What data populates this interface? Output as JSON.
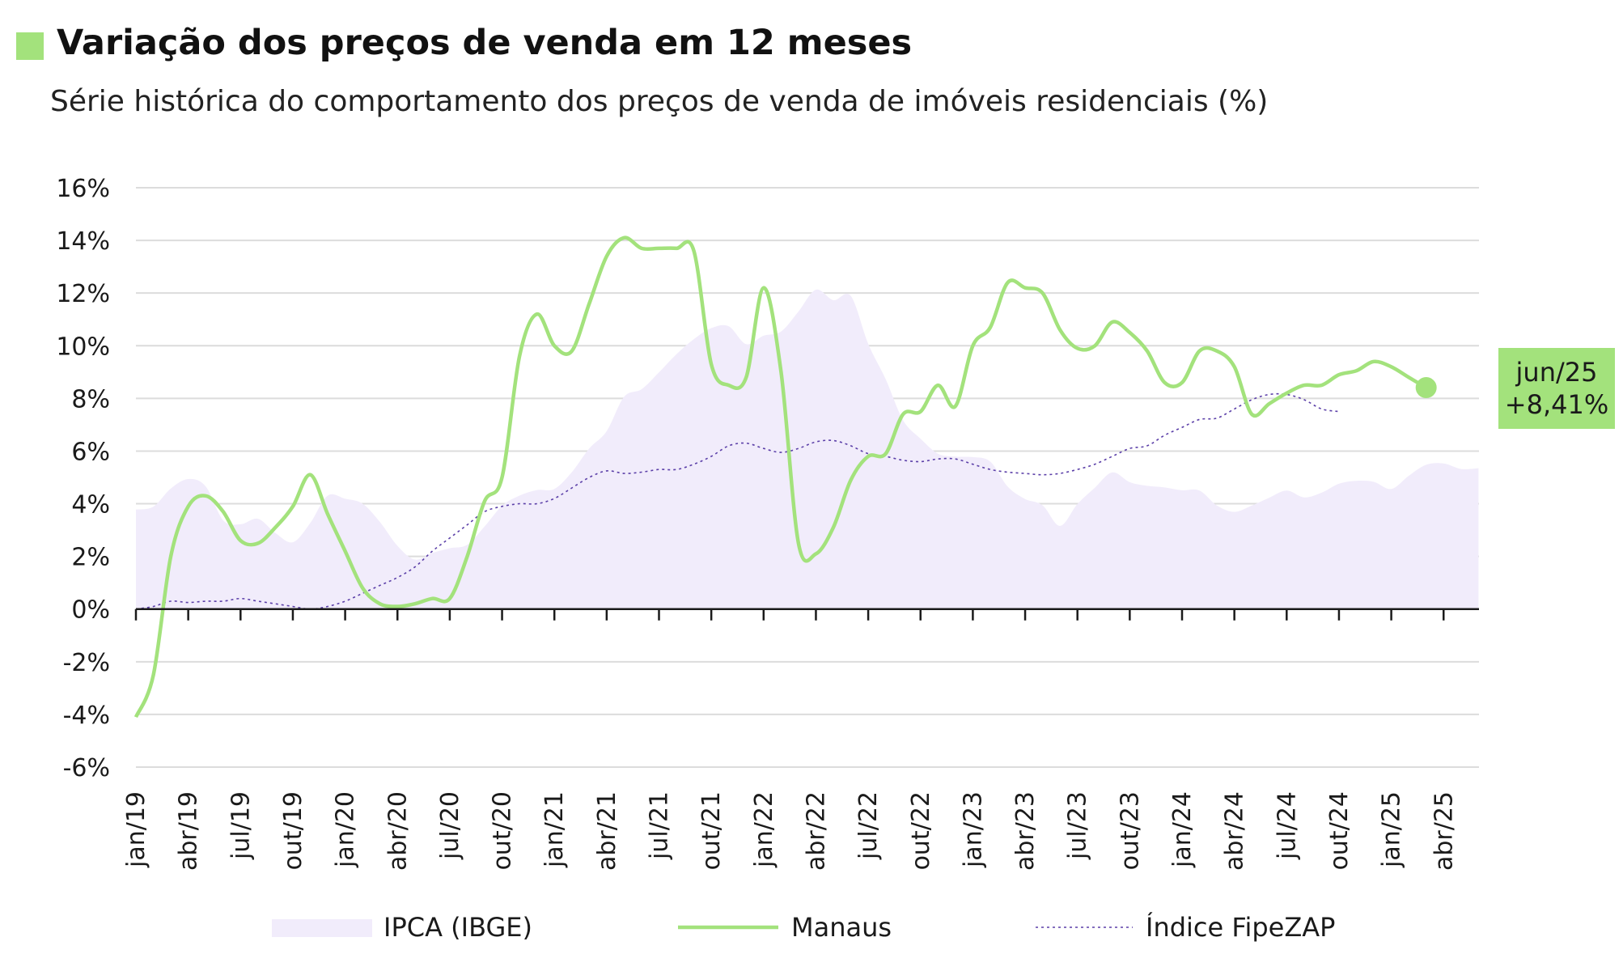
{
  "header": {
    "title": "Variação dos preços de venda em 12 meses",
    "subtitle": "Série histórica do comportamento dos preços de venda de imóveis residenciais (%)",
    "accent_color": "#a3e27c"
  },
  "chart_data": {
    "type": "line",
    "x_tick_labels": [
      "jan/19",
      "abr/19",
      "jul/19",
      "out/19",
      "jan/20",
      "abr/20",
      "jul/20",
      "out/20",
      "jan/21",
      "abr/21",
      "jul/21",
      "out/21",
      "jan/22",
      "abr/22",
      "jul/22",
      "out/22",
      "jan/23",
      "abr/23",
      "jul/23",
      "out/23",
      "jan/24",
      "abr/24",
      "jul/24",
      "out/24",
      "jan/25",
      "abr/25"
    ],
    "y_tick_labels": [
      "16%",
      "14%",
      "12%",
      "10%",
      "8%",
      "6%",
      "4%",
      "2%",
      "0%",
      "-2%",
      "-4%",
      "-6%"
    ],
    "ylim": [
      -6,
      16
    ],
    "y_step": 2,
    "grid": true,
    "legend_position": "bottom",
    "x_start": "jan/19",
    "x_end": "jun/25",
    "series": [
      {
        "name": "IPCA (IBGE)",
        "style": "area",
        "color": "#f1ecfb",
        "values": [
          3.78,
          3.89,
          4.58,
          4.94,
          4.66,
          3.37,
          3.22,
          3.43,
          2.89,
          2.54,
          3.27,
          4.31,
          4.19,
          4.0,
          3.3,
          2.4,
          1.88,
          2.13,
          2.31,
          2.44,
          3.14,
          3.92,
          4.31,
          4.52,
          4.56,
          5.2,
          6.1,
          6.76,
          8.06,
          8.35,
          8.99,
          9.68,
          10.25,
          10.67,
          10.74,
          10.06,
          10.38,
          10.54,
          11.3,
          12.13,
          11.73,
          11.89,
          10.07,
          8.73,
          7.17,
          6.47,
          5.9,
          5.79,
          5.77,
          5.6,
          4.65,
          4.18,
          3.94,
          3.16,
          3.99,
          4.61,
          5.19,
          4.82,
          4.68,
          4.62,
          4.51,
          4.5,
          3.93,
          3.69,
          3.93,
          4.23,
          4.5,
          4.24,
          4.42,
          4.76,
          4.87,
          4.83,
          4.56,
          5.06,
          5.48,
          5.53,
          5.32,
          5.35
        ]
      },
      {
        "name": "Manaus",
        "style": "line",
        "color": "#a3e27c",
        "values": [
          -4.1,
          -2.5,
          2.0,
          3.9,
          4.3,
          3.7,
          2.6,
          2.5,
          3.1,
          3.9,
          5.1,
          3.6,
          2.2,
          0.8,
          0.2,
          0.1,
          0.2,
          0.4,
          0.4,
          2.0,
          4.1,
          5.0,
          9.6,
          11.2,
          10.0,
          9.8,
          11.6,
          13.4,
          14.1,
          13.7,
          13.7,
          13.7,
          13.6,
          9.3,
          8.5,
          8.8,
          12.2,
          9.0,
          2.5,
          2.1,
          3.1,
          4.9,
          5.8,
          5.9,
          7.4,
          7.5,
          8.5,
          7.7,
          10.0,
          10.7,
          12.4,
          12.2,
          12.0,
          10.6,
          9.9,
          10.0,
          10.9,
          10.5,
          9.8,
          8.6,
          8.6,
          9.8,
          9.8,
          9.2,
          7.4,
          7.8,
          8.2,
          8.5,
          8.5,
          8.9,
          9.05,
          9.4,
          9.2,
          8.8,
          8.41
        ]
      },
      {
        "name": "Índice FipeZAP",
        "style": "dotted",
        "color": "#5b3fa8",
        "values": [
          0.0,
          0.1,
          0.3,
          0.25,
          0.3,
          0.3,
          0.4,
          0.3,
          0.2,
          0.1,
          0.0,
          0.1,
          0.3,
          0.6,
          0.9,
          1.2,
          1.6,
          2.2,
          2.7,
          3.2,
          3.7,
          3.9,
          4.0,
          4.0,
          4.2,
          4.6,
          5.0,
          5.25,
          5.15,
          5.2,
          5.3,
          5.3,
          5.5,
          5.8,
          6.2,
          6.3,
          6.1,
          5.95,
          6.1,
          6.35,
          6.4,
          6.2,
          5.9,
          5.8,
          5.65,
          5.6,
          5.7,
          5.7,
          5.5,
          5.3,
          5.2,
          5.15,
          5.1,
          5.15,
          5.3,
          5.5,
          5.8,
          6.1,
          6.2,
          6.6,
          6.9,
          7.2,
          7.25,
          7.6,
          7.95,
          8.15,
          8.15,
          7.95,
          7.6,
          7.5
        ]
      }
    ],
    "annotation": {
      "label": "jun/25",
      "value_label": "+8,41%",
      "value": 8.41
    }
  }
}
